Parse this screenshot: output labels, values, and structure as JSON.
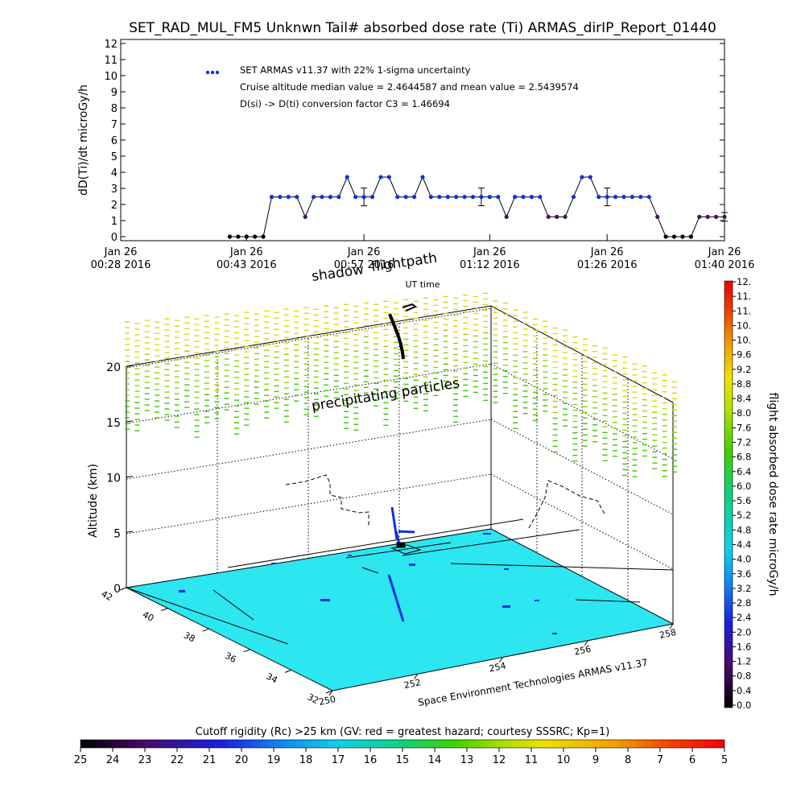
{
  "title": "SET_RAD_MUL_FM5 Unknwn Tail#  absorbed dose rate (Ti) ARMAS_dirIP_Report_01440",
  "chart_data": [
    {
      "type": "line",
      "ylabel": "dD(Ti)/dt microGy/h",
      "xlabel": "UT time",
      "ylim": [
        0,
        12
      ],
      "yticks": [
        "0",
        "1",
        "2",
        "3",
        "4",
        "5",
        "6",
        "7",
        "8",
        "9",
        "10",
        "11",
        "12"
      ],
      "xlim": [
        0,
        72
      ],
      "xticks": [
        {
          "t": 0,
          "line1": "Jan 26",
          "line2": "00:28 2016"
        },
        {
          "t": 15,
          "line1": "Jan 26",
          "line2": "00:43 2016"
        },
        {
          "t": 29,
          "line1": "Jan 26",
          "line2": "00:57 2016"
        },
        {
          "t": 44,
          "line1": "Jan 26",
          "line2": "01:12 2016"
        },
        {
          "t": 58,
          "line1": "Jan 26",
          "line2": "01:26 2016"
        },
        {
          "t": 72,
          "line1": "Jan 26",
          "line2": "01:40 2016"
        }
      ],
      "legend": {
        "marker": "SET ARMAS v11.37 with 22% 1-sigma uncertainty",
        "line2": "Cruise altitude median value = 2.4644587 and mean value = 2.5439574",
        "line3": "D(si) -> D(ti) conversion factor C3 = 1.46694"
      },
      "series": [
        {
          "x": [
            13,
            14,
            15,
            16,
            17,
            18,
            19,
            20,
            21,
            22,
            23,
            24,
            25,
            26,
            27,
            28,
            29,
            30,
            31,
            32,
            33,
            34,
            35,
            36,
            37,
            38,
            39,
            40,
            41,
            42,
            43,
            44,
            45,
            46,
            47,
            48,
            49,
            50,
            51,
            52,
            53,
            54,
            55,
            56,
            57,
            58,
            59,
            60,
            61,
            62,
            63,
            64,
            65,
            66,
            67,
            68,
            69,
            70,
            71,
            72
          ],
          "y": [
            0,
            0,
            0,
            0,
            0,
            2.47,
            2.47,
            2.47,
            2.47,
            1.23,
            2.47,
            2.47,
            2.47,
            2.47,
            3.7,
            2.47,
            2.47,
            2.47,
            3.7,
            3.7,
            2.47,
            2.47,
            2.47,
            3.7,
            2.47,
            2.47,
            2.47,
            2.47,
            2.47,
            2.47,
            2.47,
            2.47,
            2.47,
            1.23,
            2.47,
            2.47,
            2.47,
            2.47,
            1.23,
            1.23,
            1.23,
            2.47,
            3.7,
            3.7,
            2.47,
            2.47,
            2.47,
            2.47,
            2.47,
            2.47,
            2.47,
            1.23,
            0,
            0,
            0,
            0,
            1.23,
            1.23,
            1.23,
            1.23
          ],
          "errorbars": [
            {
              "x": 29,
              "y": 2.47,
              "err": 0.55
            },
            {
              "x": 43,
              "y": 2.47,
              "err": 0.55
            },
            {
              "x": 58,
              "y": 2.47,
              "err": 0.55
            },
            {
              "x": 72,
              "y": 1.23,
              "err": 0.27
            }
          ]
        }
      ]
    },
    {
      "type": "scatter",
      "ylabel": "Altitude (km)",
      "zticks": [
        "0",
        "5",
        "10",
        "15",
        "20"
      ],
      "xticks": [
        "250",
        "252",
        "254",
        "256",
        "258"
      ],
      "yticks": [
        "32",
        "34",
        "36",
        "38",
        "40",
        "42"
      ],
      "annotations": {
        "shadow": "shadow",
        "flightpath": "flightpath",
        "precip": "precipitating particles"
      },
      "credit": "Space Environment Technologies ARMAS v11.37",
      "colorbar": {
        "label": "flight absorbed dose rate microGy/h",
        "ticks": [
          "0.0",
          "0.4",
          "0.8",
          "1.2",
          "1.6",
          "2.0",
          "2.4",
          "2.8",
          "3.2",
          "3.6",
          "4.0",
          "4.4",
          "4.8",
          "5.2",
          "5.6",
          "6.0",
          "6.4",
          "6.8",
          "7.2",
          "7.6",
          "8.0",
          "8.4",
          "8.8",
          "9.2",
          "9.6",
          "10.",
          "10.",
          "11.",
          "11.",
          "12."
        ]
      },
      "cutoff_bar": {
        "label": "Cutoff rigidity (Rc) >25 km (GV: red = greatest hazard; courtesy SSSRC; Kp=1)",
        "ticks": [
          "25",
          "24",
          "23",
          "22",
          "21",
          "20",
          "19",
          "18",
          "17",
          "16",
          "15",
          "14",
          "13",
          "12",
          "11",
          "10",
          "9",
          "8",
          "7",
          "6",
          "5"
        ]
      }
    }
  ],
  "colors": {
    "floor": "#2ce6f0",
    "precip_top": "#e0d800",
    "precip_mid": "#8fd200",
    "precip_low": "#3cc800",
    "marker": "#1030e0",
    "marker_low": "#4a1060"
  }
}
